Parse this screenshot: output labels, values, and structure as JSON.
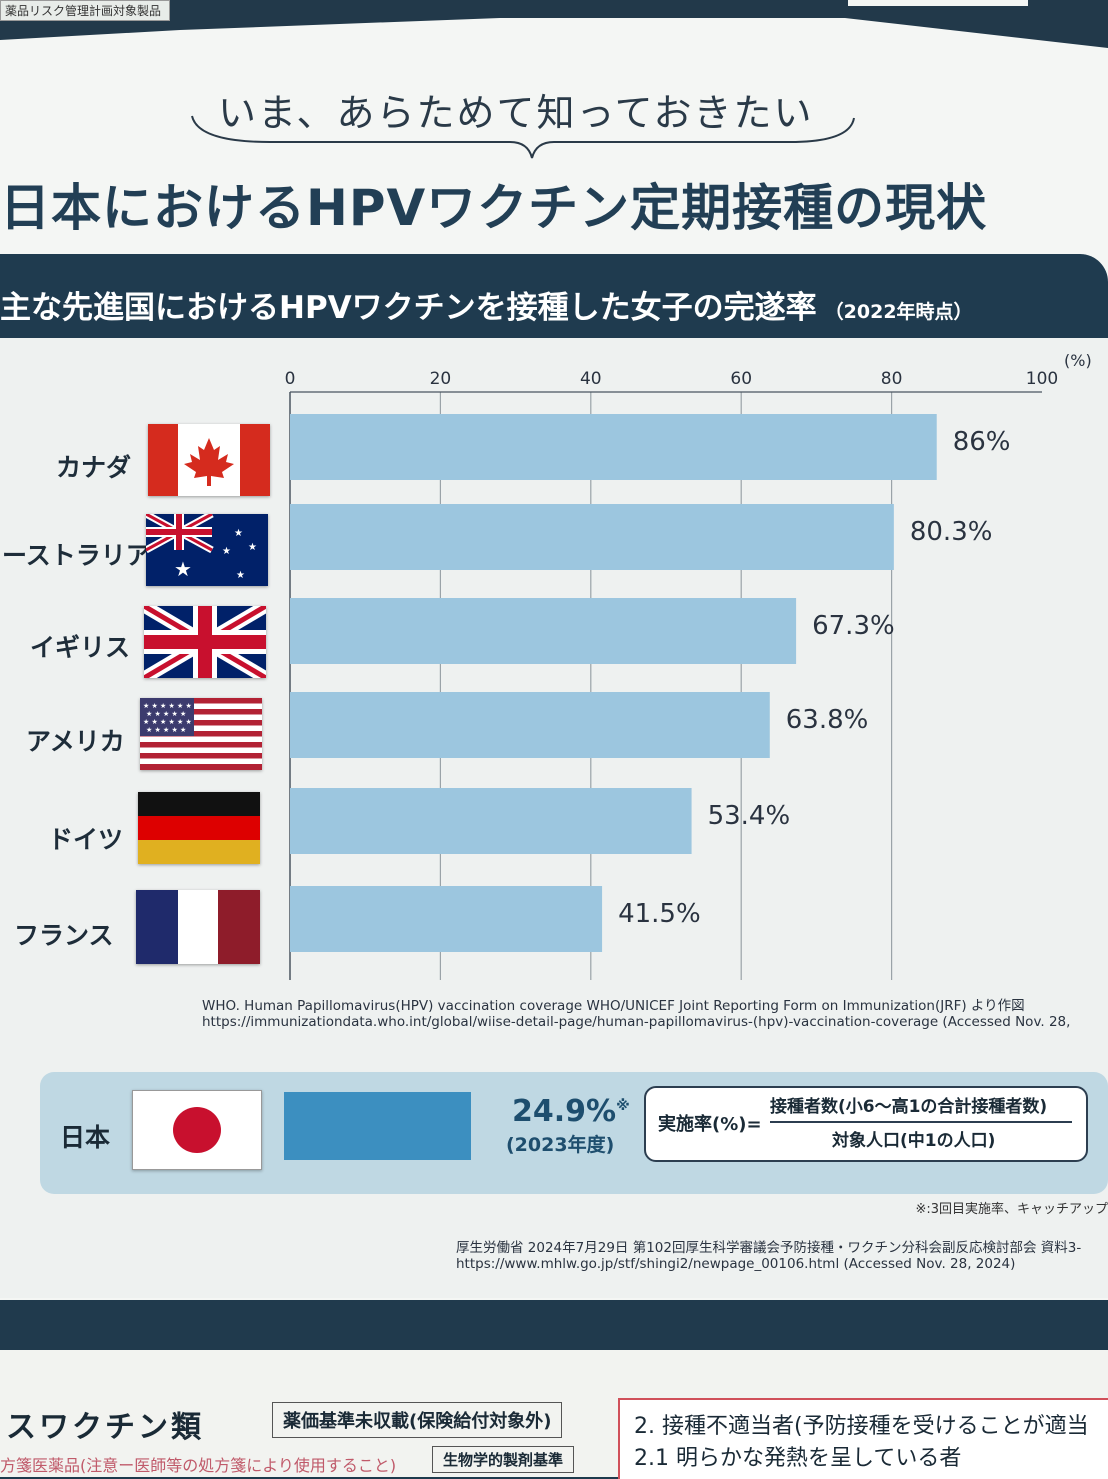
{
  "header": {
    "tag": "薬品リスク管理計画対象製品",
    "kicker": "いま、あらためて知っておきたい",
    "title": "日本におけるHPVワクチン定期接種の現状"
  },
  "banner": {
    "title": "主な先進国におけるHPVワクチンを接種した女子の完遂率",
    "sub": "（2022年時点）"
  },
  "chart_data": {
    "type": "bar",
    "orientation": "horizontal",
    "xlim": [
      0,
      100
    ],
    "ticks": [
      "0",
      "20",
      "40",
      "60",
      "80",
      "100"
    ],
    "unit": "(%)",
    "grid": true,
    "categories": [
      "カナダ",
      "ーストラリア",
      "イギリス",
      "アメリカ",
      "ドイツ",
      "フランス"
    ],
    "values": [
      86,
      80.3,
      67.3,
      63.8,
      53.4,
      41.5
    ],
    "labels": [
      "86%",
      "80.3%",
      "67.3%",
      "63.8%",
      "53.4%",
      "41.5%"
    ],
    "color": "#9cc6df"
  },
  "source1": {
    "line1": "WHO. Human Papillomavirus(HPV) vaccination coverage WHO/UNICEF Joint Reporting Form on Immunization(JRF) より作図",
    "line2": "https://immunizationdata.who.int/global/wiise-detail-page/human-papillomavirus-(hpv)-vaccination-coverage (Accessed Nov. 28,"
  },
  "japan": {
    "label": "日本",
    "value": 24.9,
    "value_text": "24.9%",
    "mark": "※",
    "year": "(2023年度)",
    "color": "#3c8fc0",
    "formula_lhs": "実施率(%)=",
    "formula_num": "接種者数(小6〜高1の合計接種者数)",
    "formula_den": "対象人口(中1の人口)"
  },
  "note": "※:3回目実施率、キャッチアップ",
  "source2": {
    "line1": "厚生労働省 2024年7月29日 第102回厚生科学審議会予防接種・ワクチン分科会副反応検討部会 資料3-",
    "line2": "https://www.mhlw.go.jp/stf/shingi2/newpage_00106.html (Accessed Nov. 28, 2024)"
  },
  "bottom": {
    "title": "スワクチン類",
    "box1": "薬価基準未収載(保険給付対象外)",
    "sub": "方箋医薬品(注意ー医師等の処方箋により使用すること)",
    "box2": "生物学的製剤基準",
    "right_line1": "2. 接種不適当者(予防接種を受けることが適当",
    "right_line2": "2.1 明らかな発熱を呈している者"
  }
}
